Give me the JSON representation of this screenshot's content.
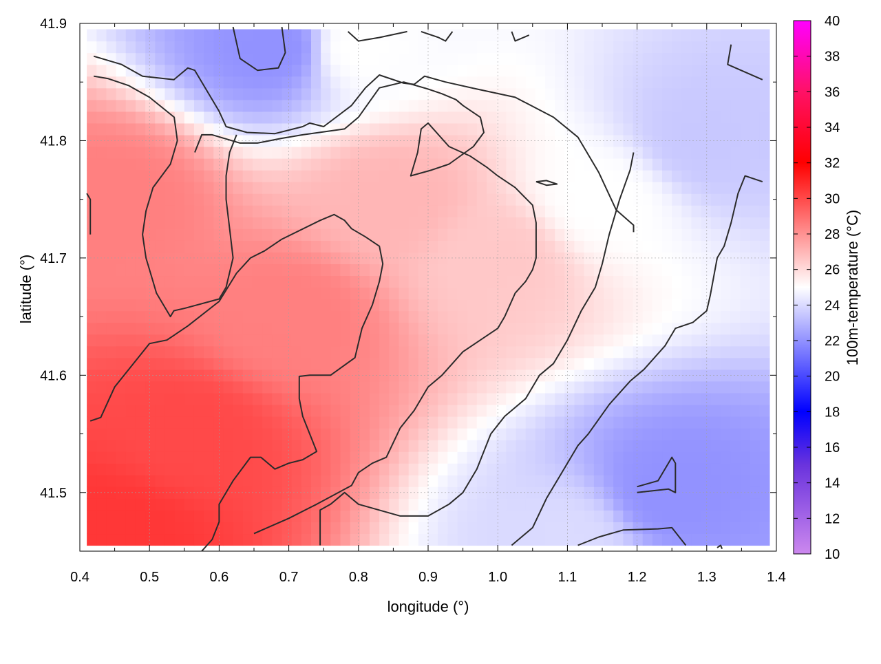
{
  "chart_data": {
    "type": "heatmap",
    "xlabel": "longitude (°)",
    "ylabel": "latitude (°)",
    "colorbar_label": "100m-temperature (°C)",
    "xlim": [
      0.4,
      1.4
    ],
    "ylim": [
      41.45,
      41.9
    ],
    "data_x_range": [
      0.41,
      1.39
    ],
    "data_y_range": [
      41.455,
      41.895
    ],
    "x_ticks": [
      0.4,
      0.5,
      0.6,
      0.7,
      0.8,
      0.9,
      1.0,
      1.1,
      1.2,
      1.3,
      1.4
    ],
    "x_tick_labels": [
      "0.4",
      "0.5",
      "0.6",
      "0.7",
      "0.8",
      "0.9",
      "1.0",
      "1.1",
      "1.2",
      "1.3",
      "1.4"
    ],
    "y_ticks": [
      41.5,
      41.6,
      41.7,
      41.8,
      41.9
    ],
    "y_tick_labels": [
      "41.5",
      "41.6",
      "41.7",
      "41.8",
      "41.9"
    ],
    "colorbar_range": [
      10,
      40
    ],
    "colorbar_ticks": [
      10,
      12,
      14,
      16,
      18,
      20,
      22,
      24,
      26,
      28,
      30,
      32,
      34,
      36,
      38,
      40
    ],
    "colorbar_tick_labels": [
      "10",
      "12",
      "14",
      "16",
      "18",
      "20",
      "22",
      "24",
      "26",
      "28",
      "30",
      "32",
      "34",
      "36",
      "38",
      "40"
    ],
    "colormap": [
      {
        "value": 10,
        "color": "#cc88ee"
      },
      {
        "value": 15,
        "color": "#6a33dd"
      },
      {
        "value": 18,
        "color": "#0000ff"
      },
      {
        "value": 25,
        "color": "#ffffff"
      },
      {
        "value": 32,
        "color": "#ff0000"
      },
      {
        "value": 36,
        "color": "#ff1166"
      },
      {
        "value": 40,
        "color": "#ff00ff"
      }
    ],
    "grid": true,
    "field_samples": [
      {
        "lon": 0.45,
        "lat": 41.47,
        "value": 30.5
      },
      {
        "lon": 0.55,
        "lat": 41.55,
        "value": 30.0
      },
      {
        "lon": 0.45,
        "lat": 41.75,
        "value": 28.5
      },
      {
        "lon": 0.7,
        "lat": 41.65,
        "value": 28.5
      },
      {
        "lon": 0.85,
        "lat": 41.75,
        "value": 27.0
      },
      {
        "lon": 1.0,
        "lat": 41.7,
        "value": 26.5
      },
      {
        "lon": 0.8,
        "lat": 41.88,
        "value": 25.0
      },
      {
        "lon": 0.68,
        "lat": 41.88,
        "value": 22.0
      },
      {
        "lon": 1.15,
        "lat": 41.75,
        "value": 25.0
      },
      {
        "lon": 1.3,
        "lat": 41.8,
        "value": 23.5
      },
      {
        "lon": 1.25,
        "lat": 41.5,
        "value": 22.0
      },
      {
        "lon": 1.1,
        "lat": 41.46,
        "value": 24.0
      }
    ],
    "contours": [
      [
        [
          0.42,
          41.872
        ],
        [
          0.46,
          41.865
        ],
        [
          0.49,
          41.855
        ],
        [
          0.535,
          41.852
        ],
        [
          0.555,
          41.862
        ],
        [
          0.565,
          41.86
        ],
        [
          0.6,
          41.825
        ],
        [
          0.61,
          41.812
        ],
        [
          0.64,
          41.807
        ],
        [
          0.68,
          41.806
        ],
        [
          0.72,
          41.812
        ],
        [
          0.73,
          41.815
        ],
        [
          0.75,
          41.812
        ],
        [
          0.79,
          41.83
        ],
        [
          0.81,
          41.845
        ],
        [
          0.83,
          41.856
        ],
        [
          0.855,
          41.851
        ],
        [
          0.865,
          41.849
        ],
        [
          0.88,
          41.848
        ],
        [
          0.895,
          41.855
        ],
        [
          0.925,
          41.85
        ],
        [
          0.97,
          41.844
        ],
        [
          1.025,
          41.837
        ],
        [
          1.08,
          41.82
        ],
        [
          1.115,
          41.803
        ],
        [
          1.145,
          41.773
        ],
        [
          1.17,
          41.741
        ],
        [
          1.195,
          41.728
        ],
        [
          1.195,
          41.722
        ]
      ],
      [
        [
          0.42,
          41.855
        ],
        [
          0.44,
          41.853
        ],
        [
          0.47,
          41.847
        ],
        [
          0.5,
          41.837
        ],
        [
          0.5355,
          41.82
        ],
        [
          0.54,
          41.8
        ],
        [
          0.53,
          41.78
        ],
        [
          0.505,
          41.76
        ],
        [
          0.495,
          41.74
        ],
        [
          0.49,
          41.72
        ],
        [
          0.495,
          41.7
        ],
        [
          0.5,
          41.69
        ],
        [
          0.505,
          41.68
        ],
        [
          0.51,
          41.67
        ],
        [
          0.53,
          41.65
        ],
        [
          0.535,
          41.655
        ],
        [
          0.55,
          41.657
        ],
        [
          0.6,
          41.665
        ],
        [
          0.61,
          41.675
        ],
        [
          0.62,
          41.7
        ],
        [
          0.615,
          41.725
        ],
        [
          0.61,
          41.75
        ],
        [
          0.61,
          41.77
        ],
        [
          0.615,
          41.79
        ],
        [
          0.625,
          41.805
        ]
      ],
      [
        [
          0.41,
          41.755
        ],
        [
          0.415,
          41.75
        ],
        [
          0.415,
          41.72
        ]
      ],
      [
        [
          0.415,
          41.561
        ],
        [
          0.43,
          41.564
        ],
        [
          0.45,
          41.59
        ],
        [
          0.5,
          41.627
        ],
        [
          0.525,
          41.63
        ],
        [
          0.555,
          41.642
        ],
        [
          0.6,
          41.663
        ],
        [
          0.625,
          41.687
        ],
        [
          0.645,
          41.7
        ],
        [
          0.665,
          41.706
        ],
        [
          0.69,
          41.716
        ],
        [
          0.745,
          41.732
        ],
        [
          0.765,
          41.737
        ],
        [
          0.78,
          41.732
        ],
        [
          0.79,
          41.725
        ],
        [
          0.81,
          41.718
        ],
        [
          0.83,
          41.71
        ],
        [
          0.835,
          41.695
        ],
        [
          0.83,
          41.68
        ],
        [
          0.82,
          41.66
        ],
        [
          0.805,
          41.64
        ],
        [
          0.795,
          41.615
        ],
        [
          0.76,
          41.6
        ],
        [
          0.73,
          41.6
        ],
        [
          0.715,
          41.599
        ],
        [
          0.715,
          41.58
        ],
        [
          0.72,
          41.565
        ],
        [
          0.73,
          41.55
        ],
        [
          0.74,
          41.535
        ],
        [
          0.72,
          41.528
        ],
        [
          0.7,
          41.525
        ],
        [
          0.68,
          41.52
        ],
        [
          0.66,
          41.53
        ],
        [
          0.645,
          41.53
        ],
        [
          0.62,
          41.51
        ],
        [
          0.6,
          41.49
        ],
        [
          0.6,
          41.475
        ],
        [
          0.59,
          41.46
        ],
        [
          0.575,
          41.45
        ]
      ],
      [
        [
          0.65,
          41.465
        ],
        [
          0.7,
          41.478
        ],
        [
          0.73,
          41.487
        ],
        [
          0.74,
          41.49
        ],
        [
          0.79,
          41.506
        ],
        [
          0.8,
          41.517
        ],
        [
          0.82,
          41.525
        ],
        [
          0.84,
          41.53
        ],
        [
          0.86,
          41.555
        ],
        [
          0.88,
          41.57
        ],
        [
          0.9,
          41.59
        ],
        [
          0.92,
          41.6
        ],
        [
          0.95,
          41.62
        ],
        [
          0.975,
          41.63
        ],
        [
          1.0,
          41.64
        ],
        [
          1.01,
          41.65
        ],
        [
          1.025,
          41.67
        ],
        [
          1.04,
          41.68
        ],
        [
          1.05,
          41.69
        ],
        [
          1.055,
          41.7
        ],
        [
          1.055,
          41.73
        ],
        [
          1.05,
          41.745
        ],
        [
          1.025,
          41.76
        ],
        [
          1.0,
          41.77
        ],
        [
          0.985,
          41.777
        ],
        [
          0.96,
          41.787
        ],
        [
          0.93,
          41.795
        ],
        [
          0.9,
          41.815
        ],
        [
          0.89,
          41.81
        ],
        [
          0.885,
          41.79
        ],
        [
          0.875,
          41.77
        ],
        [
          0.905,
          41.775
        ],
        [
          0.93,
          41.78
        ],
        [
          0.965,
          41.795
        ],
        [
          0.98,
          41.807
        ],
        [
          0.975,
          41.82
        ],
        [
          0.95,
          41.83
        ],
        [
          0.94,
          41.835
        ],
        [
          0.92,
          41.84
        ],
        [
          0.9,
          41.844
        ],
        [
          0.865,
          41.85
        ],
        [
          0.83,
          41.845
        ],
        [
          0.8,
          41.82
        ],
        [
          0.78,
          41.81
        ],
        [
          0.72,
          41.805
        ],
        [
          0.69,
          41.802
        ],
        [
          0.655,
          41.798
        ],
        [
          0.63,
          41.798
        ],
        [
          0.59,
          41.805
        ],
        [
          0.575,
          41.805
        ],
        [
          0.565,
          41.79
        ]
      ],
      [
        [
          0.745,
          41.455
        ],
        [
          0.745,
          41.485
        ],
        [
          0.76,
          41.49
        ],
        [
          0.78,
          41.5
        ],
        [
          0.8,
          41.49
        ],
        [
          0.86,
          41.48
        ],
        [
          0.9,
          41.48
        ],
        [
          0.93,
          41.49
        ],
        [
          0.95,
          41.5
        ],
        [
          0.96,
          41.51
        ],
        [
          0.97,
          41.52
        ],
        [
          0.99,
          41.55
        ],
        [
          1.01,
          41.565
        ],
        [
          1.02,
          41.57
        ],
        [
          1.04,
          41.58
        ],
        [
          1.06,
          41.6
        ],
        [
          1.08,
          41.61
        ],
        [
          1.1,
          41.63
        ],
        [
          1.12,
          41.655
        ],
        [
          1.14,
          41.675
        ],
        [
          1.15,
          41.695
        ],
        [
          1.16,
          41.72
        ],
        [
          1.175,
          41.75
        ],
        [
          1.19,
          41.775
        ],
        [
          1.195,
          41.79
        ]
      ],
      [
        [
          1.02,
          41.455
        ],
        [
          1.05,
          41.47
        ],
        [
          1.07,
          41.495
        ],
        [
          1.09,
          41.515
        ],
        [
          1.115,
          41.54
        ],
        [
          1.13,
          41.55
        ],
        [
          1.16,
          41.575
        ],
        [
          1.19,
          41.595
        ],
        [
          1.21,
          41.605
        ],
        [
          1.24,
          41.625
        ],
        [
          1.255,
          41.64
        ],
        [
          1.28,
          41.645
        ],
        [
          1.3,
          41.655
        ],
        [
          1.305,
          41.668
        ],
        [
          1.315,
          41.7
        ],
        [
          1.325,
          41.71
        ],
        [
          1.335,
          41.73
        ],
        [
          1.345,
          41.755
        ],
        [
          1.355,
          41.77
        ],
        [
          1.38,
          41.765
        ]
      ],
      [
        [
          1.115,
          41.455
        ],
        [
          1.145,
          41.462
        ],
        [
          1.18,
          41.468
        ],
        [
          1.23,
          41.469
        ],
        [
          1.25,
          41.47
        ],
        [
          1.27,
          41.455
        ]
      ],
      [
        [
          1.2,
          41.5
        ],
        [
          1.245,
          41.503
        ],
        [
          1.255,
          41.5
        ],
        [
          1.255,
          41.525
        ],
        [
          1.25,
          41.53
        ],
        [
          1.23,
          41.51
        ],
        [
          1.2,
          41.505
        ]
      ],
      [
        [
          0.62,
          41.897
        ],
        [
          0.63,
          41.87
        ],
        [
          0.655,
          41.86
        ],
        [
          0.685,
          41.862
        ],
        [
          0.695,
          41.875
        ],
        [
          0.69,
          41.897
        ]
      ],
      [
        [
          0.785,
          41.893
        ],
        [
          0.8,
          41.885
        ],
        [
          0.83,
          41.888
        ],
        [
          0.87,
          41.893
        ]
      ],
      [
        [
          0.89,
          41.893
        ],
        [
          0.915,
          41.888
        ],
        [
          0.925,
          41.885
        ],
        [
          0.935,
          41.893
        ]
      ],
      [
        [
          1.02,
          41.893
        ],
        [
          1.025,
          41.885
        ],
        [
          1.045,
          41.89
        ]
      ],
      [
        [
          1.335,
          41.882
        ],
        [
          1.33,
          41.865
        ],
        [
          1.38,
          41.852
        ]
      ],
      [
        [
          1.055,
          41.765
        ],
        [
          1.07,
          41.766
        ],
        [
          1.085,
          41.763
        ],
        [
          1.07,
          41.762
        ],
        [
          1.055,
          41.765
        ]
      ],
      [
        [
          1.315,
          41.453
        ],
        [
          1.32,
          41.455
        ],
        [
          1.322,
          41.452
        ]
      ]
    ]
  }
}
